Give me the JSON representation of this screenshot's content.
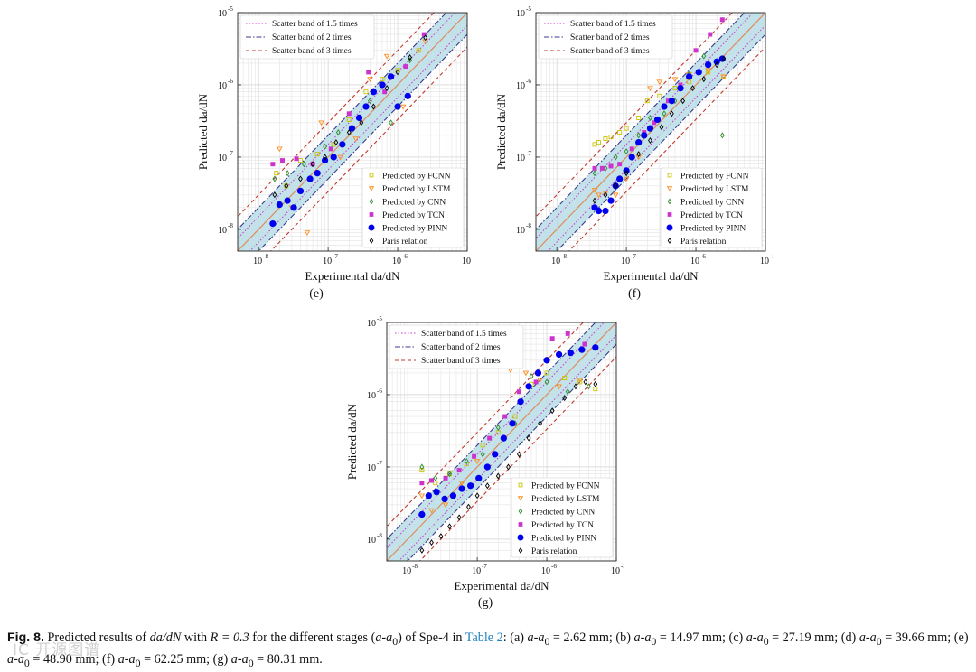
{
  "figure": {
    "legend_bands": [
      "Scatter band of 1.5 times",
      "Scatter band of 2 times",
      "Scatter band of 3 times"
    ],
    "legend_models": [
      "Predicted by FCNN",
      "Predicted by LSTM",
      "Predicted by CNN",
      "Predicted by TCN",
      "Predicted by PINN",
      "Paris relation"
    ],
    "axis_xlabel": "Experimental da/dN",
    "axis_ylabel": "Predicted da/dN",
    "tick_base": "10",
    "tick_exponents": [
      "-8",
      "-7",
      "-6",
      "-5"
    ],
    "colors": {
      "band_fill": "#b9dde6",
      "band15": "#cc33cc",
      "band2": "#3a3a8f",
      "band3": "#c0392b",
      "ideal": "#e08a5a",
      "FCNN": "#c9c400",
      "LSTM": "#ff8c1a",
      "CNN": "#2e8b2e",
      "TCN": "#cc33cc",
      "PINN": "#0000ee",
      "Paris": "#000000"
    }
  },
  "chart_data": [
    {
      "panel": "e",
      "type": "scatter",
      "xscale": "log",
      "yscale": "log",
      "xlim": [
        5e-09,
        1e-05
      ],
      "ylim": [
        5e-09,
        1e-05
      ],
      "xlabel": "Experimental da/dN",
      "ylabel": "Predicted da/dN",
      "series": [
        {
          "name": "Predicted by FCNN",
          "x": [
            1.8e-08,
            2.5e-08,
            4e-08,
            7e-08,
            1.2e-07,
            2e-07,
            3.5e-07,
            6e-07,
            1e-06,
            2e-06
          ],
          "y": [
            6e-08,
            4e-08,
            9e-08,
            1.1e-07,
            1.5e-07,
            3.3e-07,
            8e-07,
            1.2e-06,
            1.6e-06,
            3e-06
          ]
        },
        {
          "name": "Predicted by LSTM",
          "x": [
            2e-08,
            3e-08,
            5e-08,
            8e-08,
            1.5e-07,
            2.5e-07,
            4e-07,
            7e-07,
            1.2e-06,
            2.5e-06
          ],
          "y": [
            1.3e-07,
            2e-08,
            9e-09,
            3e-07,
            1e-07,
            1.8e-07,
            1.2e-06,
            2.5e-06,
            5e-07,
            4e-06
          ]
        },
        {
          "name": "Predicted by CNN",
          "x": [
            1.7e-08,
            2.6e-08,
            4.5e-08,
            9e-08,
            1.4e-07,
            2.3e-07,
            4e-07,
            8e-07,
            1.5e-06
          ],
          "y": [
            5e-08,
            6e-08,
            8e-08,
            1.4e-07,
            2.2e-07,
            2.5e-07,
            6e-07,
            3e-07,
            2.2e-06
          ]
        },
        {
          "name": "Predicted by TCN",
          "x": [
            1.6e-08,
            2.2e-08,
            3.5e-08,
            6e-08,
            1.1e-07,
            2e-07,
            3.8e-07,
            6.5e-07,
            1.3e-06,
            2.4e-06
          ],
          "y": [
            8e-08,
            9e-08,
            9.5e-08,
            8e-08,
            1.3e-07,
            4e-07,
            1.5e-06,
            8e-07,
            1.8e-06,
            5e-06
          ]
        },
        {
          "name": "Predicted by PINN",
          "x": [
            1.6e-08,
            2e-08,
            2.6e-08,
            3.2e-08,
            4e-08,
            5.5e-08,
            7e-08,
            9e-08,
            1.2e-07,
            1.6e-07,
            2.2e-07,
            2.8e-07,
            3.5e-07,
            4.5e-07,
            6e-07,
            8e-07,
            1e-06,
            1.4e-06
          ],
          "y": [
            1.2e-08,
            2.2e-08,
            2.5e-08,
            2e-08,
            3.4e-08,
            5e-08,
            6e-08,
            9e-08,
            1e-07,
            1.5e-07,
            2.5e-07,
            3.5e-07,
            5e-07,
            8e-07,
            1e-06,
            1.3e-06,
            5e-07,
            7e-07
          ]
        },
        {
          "name": "Paris relation",
          "x": [
            1.7e-08,
            2.5e-08,
            4e-08,
            6e-08,
            9e-08,
            1.3e-07,
            2e-07,
            3e-07,
            4.5e-07,
            7e-07,
            1e-06,
            1.5e-06,
            2.5e-06
          ],
          "y": [
            3e-08,
            4e-08,
            5e-08,
            8e-08,
            1e-07,
            1.6e-07,
            2.2e-07,
            3e-07,
            5e-07,
            9e-07,
            1.5e-06,
            2.4e-06,
            4.5e-06
          ]
        }
      ]
    },
    {
      "panel": "f",
      "type": "scatter",
      "xscale": "log",
      "yscale": "log",
      "xlim": [
        5e-09,
        1e-05
      ],
      "ylim": [
        5e-09,
        1e-05
      ],
      "xlabel": "Experimental da/dN",
      "ylabel": "Predicted da/dN",
      "series": [
        {
          "name": "Predicted by FCNN",
          "x": [
            3.5e-08,
            4e-08,
            5e-08,
            6e-08,
            8e-08,
            1e-07,
            1.5e-07,
            2e-07,
            3e-07,
            5e-07,
            8e-07,
            1.5e-06,
            2.5e-06
          ],
          "y": [
            1.5e-07,
            1.6e-07,
            1.8e-07,
            1.9e-07,
            2.2e-07,
            2.5e-07,
            3.5e-07,
            6e-07,
            7e-07,
            9e-07,
            1.1e-06,
            1.5e-06,
            1.3e-06
          ]
        },
        {
          "name": "Predicted by LSTM",
          "x": [
            3.5e-08,
            4e-08,
            5e-08,
            7e-08,
            1e-07,
            1.5e-07,
            2.2e-07,
            3e-07,
            5e-07,
            8e-07,
            1.5e-06,
            2.5e-06
          ],
          "y": [
            3.5e-08,
            3e-08,
            3.2e-08,
            3e-08,
            5e-08,
            1e-07,
            9e-07,
            1.1e-06,
            1.2e-06,
            1.4e-06,
            1.6e-06,
            1.3e-06
          ]
        },
        {
          "name": "Predicted by CNN",
          "x": [
            3.5e-08,
            5e-08,
            7e-08,
            1e-07,
            1.5e-07,
            2.2e-07,
            3.5e-07,
            5e-07,
            8e-07,
            1.3e-06,
            2.4e-06
          ],
          "y": [
            6e-08,
            7e-08,
            1e-07,
            1.2e-07,
            2e-07,
            3.5e-07,
            4e-07,
            6e-07,
            1.4e-06,
            2.5e-06,
            2e-07
          ]
        },
        {
          "name": "Predicted by TCN",
          "x": [
            3.5e-08,
            4.5e-08,
            6e-08,
            8e-08,
            1.2e-07,
            1.8e-07,
            2.5e-07,
            4e-07,
            6e-07,
            1e-06,
            1.6e-06,
            2.4e-06
          ],
          "y": [
            7e-08,
            7e-08,
            7.5e-08,
            8e-08,
            1.3e-07,
            2.2e-07,
            3e-07,
            6e-07,
            1e-06,
            3e-06,
            5e-06,
            8e-06
          ]
        },
        {
          "name": "Predicted by PINN",
          "x": [
            3.5e-08,
            4e-08,
            5e-08,
            6e-08,
            7e-08,
            8e-08,
            1e-07,
            1.2e-07,
            1.5e-07,
            1.8e-07,
            2.2e-07,
            2.8e-07,
            3.5e-07,
            4.5e-07,
            6e-07,
            8e-07,
            1.1e-06,
            1.5e-06,
            2e-06,
            2.4e-06
          ],
          "y": [
            2e-08,
            1.8e-08,
            1.8e-08,
            2.5e-08,
            4e-08,
            5e-08,
            6.5e-08,
            1e-07,
            1.6e-07,
            2e-07,
            2.5e-07,
            3.3e-07,
            5e-07,
            6e-07,
            9e-07,
            1.3e-06,
            1.5e-06,
            1.9e-06,
            2.1e-06,
            2.3e-06
          ]
        },
        {
          "name": "Paris relation",
          "x": [
            3.5e-08,
            5e-08,
            7e-08,
            1e-07,
            1.5e-07,
            2.2e-07,
            3.2e-07,
            4.5e-07,
            6.5e-07,
            9e-07,
            1.3e-06,
            2e-06,
            2.5e-06
          ],
          "y": [
            2.5e-08,
            3e-08,
            4e-08,
            6e-08,
            1.1e-07,
            1.7e-07,
            2.6e-07,
            4e-07,
            6e-07,
            9e-07,
            1.2e-06,
            1.9e-06,
            2.3e-06
          ]
        }
      ]
    },
    {
      "panel": "g",
      "type": "scatter",
      "xscale": "log",
      "yscale": "log",
      "xlim": [
        5e-09,
        1e-05
      ],
      "ylim": [
        5e-09,
        1e-05
      ],
      "xlabel": "Experimental da/dN",
      "ylabel": "Predicted da/dN",
      "series": [
        {
          "name": "Predicted by FCNN",
          "x": [
            1.6e-08,
            2.5e-08,
            4e-08,
            7e-08,
            1.2e-07,
            2e-07,
            3.5e-07,
            6e-07,
            1e-06,
            1.8e-06,
            3e-06,
            5e-06
          ],
          "y": [
            9e-08,
            6e-08,
            8e-08,
            1.1e-07,
            2e-07,
            3e-07,
            5e-07,
            1.4e-06,
            2e-06,
            1.7e-06,
            1.5e-06,
            1.2e-06
          ]
        },
        {
          "name": "Predicted by LSTM",
          "x": [
            1.6e-08,
            2.2e-08,
            3.5e-08,
            6e-08,
            1e-07,
            1.8e-07,
            3e-07,
            5e-07,
            8e-07,
            1.5e-06,
            3e-06
          ],
          "y": [
            4e-08,
            2.5e-08,
            3e-08,
            6e-08,
            1.2e-07,
            1.5e-07,
            2.2e-06,
            2e-06,
            1.6e-06,
            1.3e-06,
            1.6e-06
          ]
        },
        {
          "name": "Predicted by CNN",
          "x": [
            1.6e-08,
            2.5e-08,
            4e-08,
            7e-08,
            1.2e-07,
            2e-07,
            3.5e-07,
            6e-07,
            1e-06,
            2e-06,
            4e-06
          ],
          "y": [
            1e-07,
            7e-08,
            8e-08,
            1.2e-07,
            1.5e-07,
            3.5e-07,
            4e-07,
            1.8e-06,
            1.5e-06,
            1.1e-06,
            1.3e-06
          ]
        },
        {
          "name": "Predicted by TCN",
          "x": [
            1.6e-08,
            2.2e-08,
            3.5e-08,
            5.5e-08,
            9e-08,
            1.5e-07,
            2.5e-07,
            4e-07,
            7e-07,
            1.2e-06,
            2e-06,
            3.5e-06
          ],
          "y": [
            6e-08,
            6.5e-08,
            7e-08,
            9e-08,
            1.4e-07,
            2.5e-07,
            5e-07,
            1.1e-06,
            1.5e-06,
            6e-06,
            7e-06,
            5e-06
          ]
        },
        {
          "name": "Predicted by PINN",
          "x": [
            1.6e-08,
            2e-08,
            2.6e-08,
            3.4e-08,
            4.5e-08,
            6e-08,
            8e-08,
            1.05e-07,
            1.4e-07,
            1.8e-07,
            2.4e-07,
            3.2e-07,
            4.2e-07,
            5.5e-07,
            7.5e-07,
            1e-06,
            1.5e-06,
            2.2e-06,
            3.2e-06,
            5e-06
          ],
          "y": [
            2.2e-08,
            4e-08,
            4.5e-08,
            3.6e-08,
            4e-08,
            5e-08,
            5.5e-08,
            7e-08,
            1e-07,
            1.5e-07,
            2.5e-07,
            4e-07,
            8e-07,
            1.3e-06,
            2e-06,
            3e-06,
            3.6e-06,
            3.8e-06,
            4.2e-06,
            4.5e-06
          ]
        },
        {
          "name": "Paris relation",
          "x": [
            1.6e-08,
            2.2e-08,
            3e-08,
            4e-08,
            5.5e-08,
            7.5e-08,
            1e-07,
            1.4e-07,
            2e-07,
            2.8e-07,
            4e-07,
            5.5e-07,
            8e-07,
            1.2e-06,
            1.8e-06,
            2.6e-06,
            3.6e-06,
            5e-06
          ],
          "y": [
            7e-09,
            9e-09,
            1.1e-08,
            1.5e-08,
            2e-08,
            2.8e-08,
            4e-08,
            5.5e-08,
            7.5e-08,
            1e-07,
            1.5e-07,
            2.5e-07,
            4e-07,
            6e-07,
            9e-07,
            1.3e-06,
            1.5e-06,
            1.4e-06
          ]
        }
      ]
    }
  ],
  "caption": {
    "fig_label": "Fig. 8.",
    "text_1": "Predicted results of",
    "var_dadn": "da/dN",
    "text_2": "with",
    "r_value": "R = 0.3",
    "text_3": "for the different stages (",
    "var_stage": "a-a",
    "stage_sub": "0",
    "text_4": ") of Spe-4 in",
    "table_link": "Table 2",
    "items": [
      {
        "label": "(a)",
        "value": "= 2.62 mm;"
      },
      {
        "label": "(b)",
        "value": "= 14.97 mm;"
      },
      {
        "label": "(c)",
        "value": "= 27.19 mm;"
      },
      {
        "label": "(d)",
        "value": "= 39.66 mm;"
      },
      {
        "label": "(e)",
        "value": "= 48.90 mm;"
      },
      {
        "label": "(f)",
        "value": "= 62.25 mm;"
      },
      {
        "label": "(g)",
        "value": "= 80.31 mm."
      }
    ]
  },
  "watermark": "IC 开源图谱"
}
